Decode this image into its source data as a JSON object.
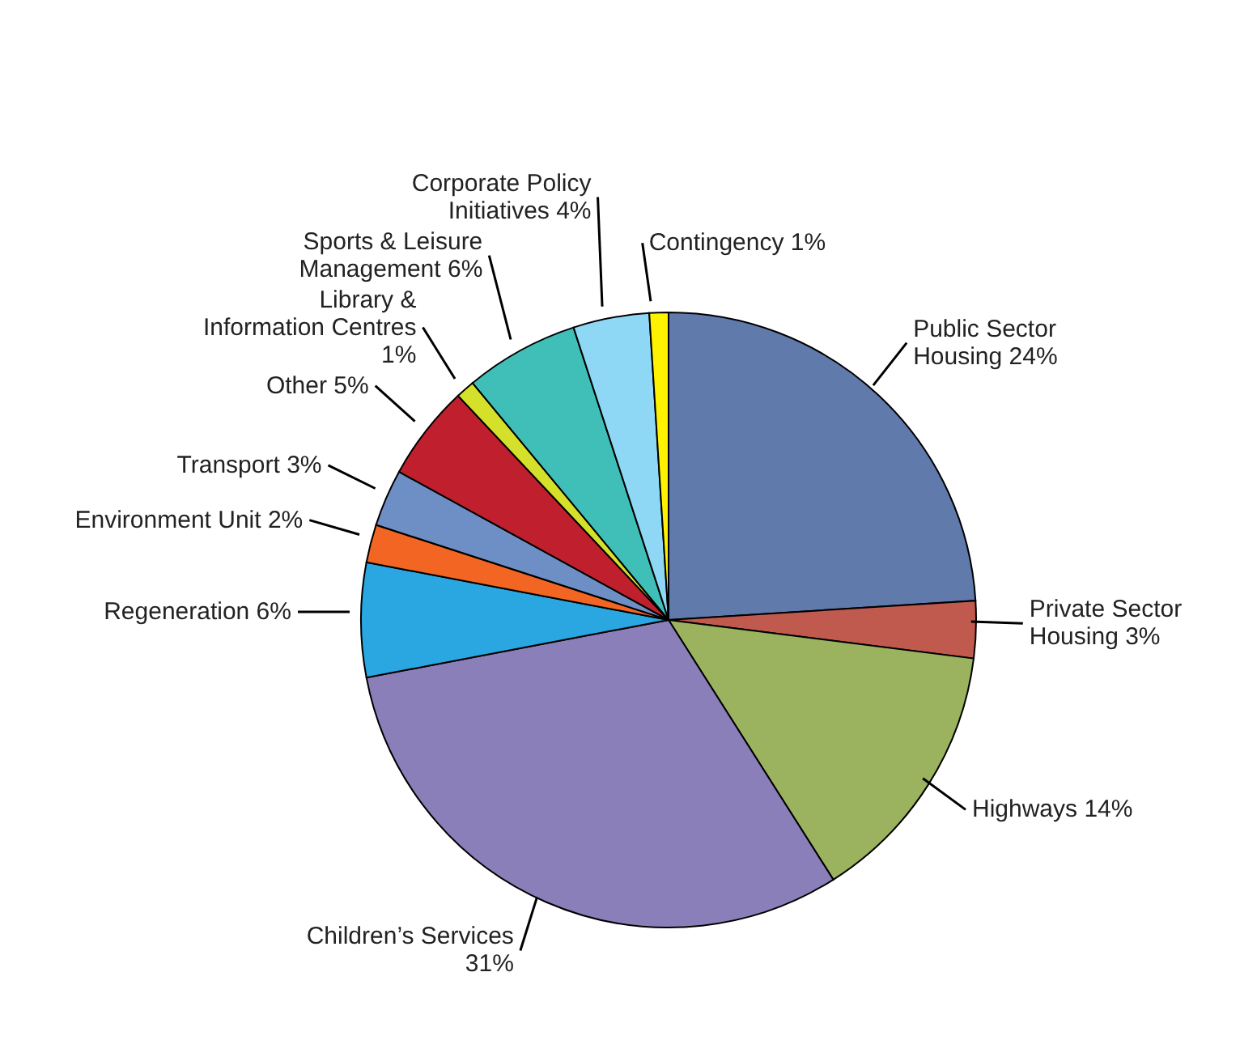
{
  "chart_data": {
    "type": "pie",
    "categories": [
      "Public Sector Housing",
      "Private Sector Housing",
      "Highways",
      "Children’s Services",
      "Regeneration",
      "Environment Unit",
      "Transport",
      "Other",
      "Library & Information Centres",
      "Sports & Leisure Management",
      "Corporate Policy Initiatives",
      "Contingency"
    ],
    "values": [
      24,
      3,
      14,
      31,
      6,
      2,
      3,
      5,
      1,
      6,
      4,
      1
    ],
    "value_labels": [
      "24%",
      "3%",
      "14%",
      "31%",
      "6%",
      "2%",
      "3%",
      "5%",
      "1%",
      "6%",
      "4%",
      "1%"
    ],
    "colors": [
      "#5f7aab",
      "#c05a4f",
      "#9bb25e",
      "#8b7fba",
      "#2aa7e0",
      "#f26522",
      "#6d8fc6",
      "#c0202e",
      "#d4e02a",
      "#3fbfb8",
      "#8ed8f5",
      "#fff200"
    ]
  }
}
